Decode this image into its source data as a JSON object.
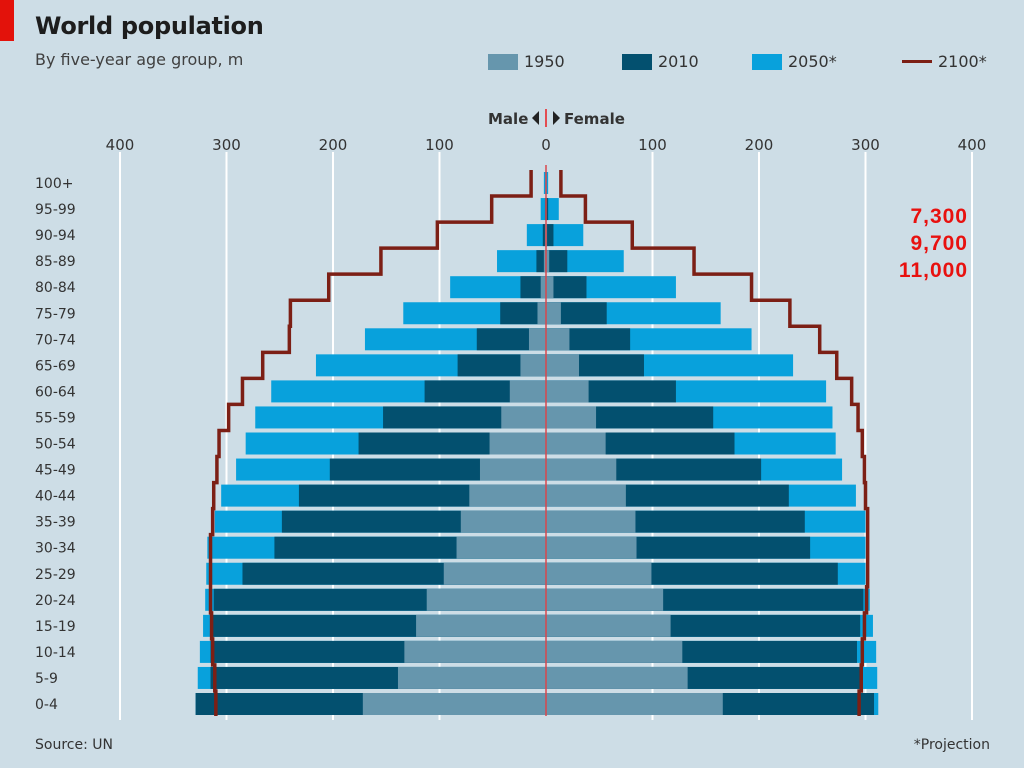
{
  "header": {
    "title": "World population",
    "subtitle": "By five-year age group, m"
  },
  "legend": [
    {
      "label": "1950",
      "color": "#6696ad",
      "kind": "bar"
    },
    {
      "label": "2010",
      "color": "#03506f",
      "kind": "bar"
    },
    {
      "label": "2050*",
      "color": "#08a1dc",
      "kind": "bar"
    },
    {
      "label": "2100*",
      "color": "#7c1f15",
      "kind": "line"
    }
  ],
  "direction_label": {
    "male": "Male",
    "female": "Female"
  },
  "footer": {
    "source": "Source: UN",
    "note": "*Projection"
  },
  "annotations": {
    "totals": [
      "7,300",
      "9,700",
      "11,000"
    ]
  },
  "chart_data": {
    "type": "bar",
    "subtype": "population-pyramid",
    "title": "World population",
    "subtitle": "By five-year age group, m",
    "xlabel": "",
    "ylabel": "",
    "xlim": [
      -400,
      400
    ],
    "x_ticks": [
      "400",
      "300",
      "200",
      "100",
      "0",
      "100",
      "200",
      "300",
      "400"
    ],
    "x_tick_values": [
      -400,
      -300,
      -200,
      -100,
      0,
      100,
      200,
      300,
      400
    ],
    "grid": true,
    "legend_position": "top-right",
    "categories": [
      "100+",
      "95-99",
      "90-94",
      "85-89",
      "80-84",
      "75-79",
      "70-74",
      "65-69",
      "60-64",
      "55-59",
      "50-54",
      "45-49",
      "40-44",
      "35-39",
      "30-34",
      "25-29",
      "20-24",
      "15-19",
      "10-14",
      "5-9",
      "0-4"
    ],
    "series": [
      {
        "name": "2050*",
        "kind": "bar",
        "male": [
          2,
          5,
          18,
          46,
          90,
          134,
          170,
          216,
          258,
          273,
          282,
          291,
          305,
          311,
          318,
          319,
          320,
          322,
          325,
          327,
          329
        ],
        "female": [
          2,
          12,
          35,
          73,
          122,
          164,
          193,
          232,
          263,
          269,
          272,
          278,
          291,
          300,
          300,
          300,
          304,
          307,
          310,
          311,
          312
        ]
      },
      {
        "name": "2010",
        "kind": "bar",
        "male": [
          0,
          1,
          3,
          9,
          24,
          43,
          65,
          83,
          114,
          153,
          176,
          203,
          232,
          248,
          255,
          285,
          312,
          313,
          315,
          315,
          329
        ],
        "female": [
          0.5,
          2,
          7,
          20,
          38,
          57,
          79,
          92,
          122,
          157,
          177,
          202,
          228,
          243,
          248,
          274,
          298,
          295,
          292,
          295,
          308
        ]
      },
      {
        "name": "1950",
        "kind": "bar",
        "male": [
          0,
          0.5,
          1,
          2,
          5,
          8,
          16,
          24,
          34,
          42,
          53,
          62,
          72,
          80,
          84,
          96,
          112,
          122,
          133,
          139,
          172
        ],
        "female": [
          0,
          0.5,
          1,
          3,
          7,
          14,
          22,
          31,
          40,
          47,
          56,
          66,
          75,
          84,
          85,
          99,
          110,
          117,
          128,
          133,
          166
        ]
      },
      {
        "name": "2100*",
        "kind": "line",
        "male": [
          14,
          51,
          102,
          155,
          204,
          240,
          241,
          266,
          285,
          298,
          307,
          309,
          312,
          313,
          315,
          315,
          315,
          314,
          313,
          311,
          310
        ],
        "female": [
          14,
          37,
          81,
          139,
          193,
          229,
          257,
          273,
          287,
          293,
          297,
          299,
          300,
          302,
          302,
          302,
          301,
          299,
          297,
          296,
          294
        ]
      }
    ],
    "annotations": [
      "7,300",
      "9,700",
      "11,000"
    ]
  }
}
